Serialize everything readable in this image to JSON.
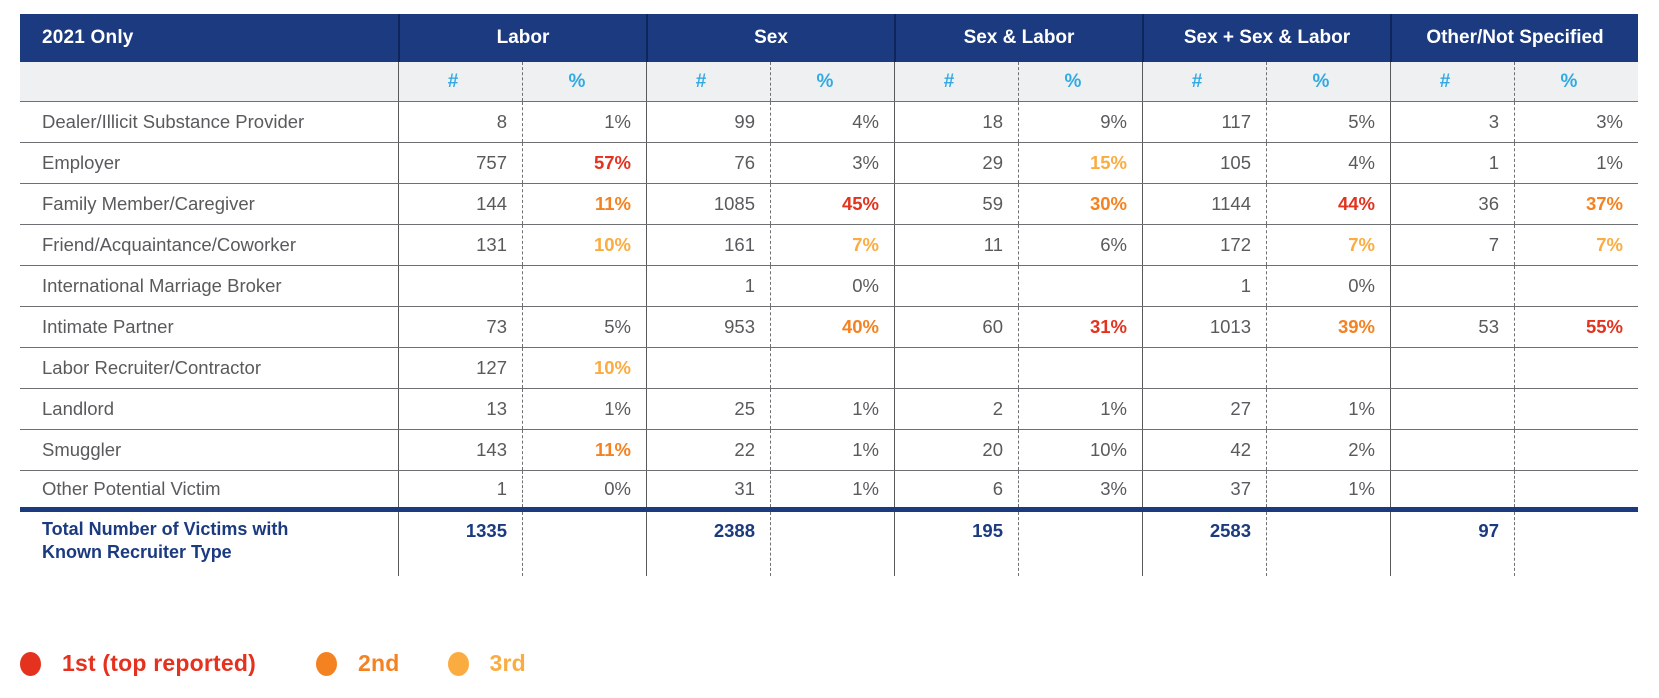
{
  "chart_data": {
    "type": "table",
    "corner_label": "2021 Only",
    "column_groups": [
      "Labor",
      "Sex",
      "Sex & Labor",
      "Sex + Sex & Labor",
      "Other/Not Specified"
    ],
    "subcolumns": {
      "count": "#",
      "percent": "%"
    },
    "rows": [
      {
        "label": "Dealer/Illicit Substance Provider",
        "cells": [
          {
            "n": "8",
            "p": "1%",
            "rank": null
          },
          {
            "n": "99",
            "p": "4%",
            "rank": null
          },
          {
            "n": "18",
            "p": "9%",
            "rank": null
          },
          {
            "n": "117",
            "p": "5%",
            "rank": null
          },
          {
            "n": "3",
            "p": "3%",
            "rank": null
          }
        ]
      },
      {
        "label": "Employer",
        "cells": [
          {
            "n": "757",
            "p": "57%",
            "rank": 1
          },
          {
            "n": "76",
            "p": "3%",
            "rank": null
          },
          {
            "n": "29",
            "p": "15%",
            "rank": 3
          },
          {
            "n": "105",
            "p": "4%",
            "rank": null
          },
          {
            "n": "1",
            "p": "1%",
            "rank": null
          }
        ]
      },
      {
        "label": "Family Member/Caregiver",
        "cells": [
          {
            "n": "144",
            "p": "11%",
            "rank": 2
          },
          {
            "n": "1085",
            "p": "45%",
            "rank": 1
          },
          {
            "n": "59",
            "p": "30%",
            "rank": 2
          },
          {
            "n": "1144",
            "p": "44%",
            "rank": 1
          },
          {
            "n": "36",
            "p": "37%",
            "rank": 2
          }
        ]
      },
      {
        "label": "Friend/Acquaintance/Coworker",
        "cells": [
          {
            "n": "131",
            "p": "10%",
            "rank": 3
          },
          {
            "n": "161",
            "p": "7%",
            "rank": 3
          },
          {
            "n": "11",
            "p": "6%",
            "rank": null
          },
          {
            "n": "172",
            "p": "7%",
            "rank": 3
          },
          {
            "n": "7",
            "p": "7%",
            "rank": 3
          }
        ]
      },
      {
        "label": "International Marriage Broker",
        "cells": [
          {
            "n": "",
            "p": "",
            "rank": null
          },
          {
            "n": "1",
            "p": "0%",
            "rank": null
          },
          {
            "n": "",
            "p": "",
            "rank": null
          },
          {
            "n": "1",
            "p": "0%",
            "rank": null
          },
          {
            "n": "",
            "p": "",
            "rank": null
          }
        ]
      },
      {
        "label": "Intimate Partner",
        "cells": [
          {
            "n": "73",
            "p": "5%",
            "rank": null
          },
          {
            "n": "953",
            "p": "40%",
            "rank": 2
          },
          {
            "n": "60",
            "p": "31%",
            "rank": 1
          },
          {
            "n": "1013",
            "p": "39%",
            "rank": 2
          },
          {
            "n": "53",
            "p": "55%",
            "rank": 1
          }
        ]
      },
      {
        "label": "Labor Recruiter/Contractor",
        "cells": [
          {
            "n": "127",
            "p": "10%",
            "rank": 3
          },
          {
            "n": "",
            "p": "",
            "rank": null
          },
          {
            "n": "",
            "p": "",
            "rank": null
          },
          {
            "n": "",
            "p": "",
            "rank": null
          },
          {
            "n": "",
            "p": "",
            "rank": null
          }
        ]
      },
      {
        "label": "Landlord",
        "cells": [
          {
            "n": "13",
            "p": "1%",
            "rank": null
          },
          {
            "n": "25",
            "p": "1%",
            "rank": null
          },
          {
            "n": "2",
            "p": "1%",
            "rank": null
          },
          {
            "n": "27",
            "p": "1%",
            "rank": null
          },
          {
            "n": "",
            "p": "",
            "rank": null
          }
        ]
      },
      {
        "label": "Smuggler",
        "cells": [
          {
            "n": "143",
            "p": "11%",
            "rank": 2
          },
          {
            "n": "22",
            "p": "1%",
            "rank": null
          },
          {
            "n": "20",
            "p": "10%",
            "rank": null
          },
          {
            "n": "42",
            "p": "2%",
            "rank": null
          },
          {
            "n": "",
            "p": "",
            "rank": null
          }
        ]
      },
      {
        "label": "Other Potential Victim",
        "cells": [
          {
            "n": "1",
            "p": "0%",
            "rank": null
          },
          {
            "n": "31",
            "p": "1%",
            "rank": null
          },
          {
            "n": "6",
            "p": "3%",
            "rank": null
          },
          {
            "n": "37",
            "p": "1%",
            "rank": null
          },
          {
            "n": "",
            "p": "",
            "rank": null
          }
        ]
      }
    ],
    "total_row": {
      "label": "Total Number of Victims with Known Recruiter Type",
      "values": [
        "1335",
        "2388",
        "195",
        "2583",
        "97"
      ]
    }
  },
  "legend": {
    "items": [
      {
        "label": "1st (top reported)",
        "rank": 1
      },
      {
        "label": "2nd",
        "rank": 2
      },
      {
        "label": "3rd",
        "rank": 3
      }
    ]
  },
  "colors": {
    "rank1_red": "#e4321f",
    "rank2_orange": "#f58220",
    "rank3_yellow": "#fbac41",
    "header_navy": "#1b3a80",
    "subheader_blue": "#35a9e1",
    "body_text_gray": "#595a5c"
  }
}
